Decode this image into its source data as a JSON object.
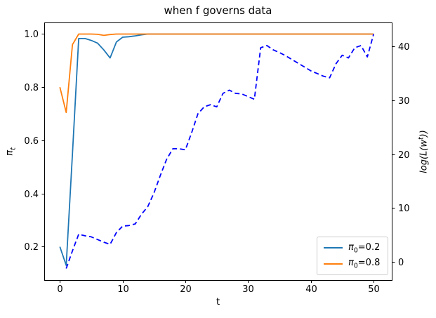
{
  "figure": {
    "title": "when f governs data",
    "xlabel": "t",
    "ylabel_left": {
      "symbol": "π",
      "subscript": "t"
    },
    "ylabel_right": {
      "prefix": "log(L(w",
      "superscript": "t",
      "suffix": "))"
    }
  },
  "legend": {
    "position": "lower right",
    "entries": [
      {
        "symbol": "π",
        "subscript": "0",
        "value": "=0.2",
        "color": "#1f77b4"
      },
      {
        "symbol": "π",
        "subscript": "0",
        "value": "=0.8",
        "color": "#ff7f0e"
      }
    ]
  },
  "chart_data": {
    "type": "line",
    "title": "when f governs data",
    "xlabel": "t",
    "ylabel_left": "π_t",
    "ylabel_right": "log(L(w^t))",
    "grid": false,
    "legend_position": "lower right",
    "xlim": [
      -2.5,
      52.9
    ],
    "ylim_left": [
      0.0745,
      1.0435
    ],
    "ylim_right": [
      -3.45,
      44.5
    ],
    "x_ticks": [
      0,
      10,
      20,
      30,
      40,
      50
    ],
    "x_tick_labels": [
      "0",
      "10",
      "20",
      "30",
      "40",
      "50"
    ],
    "y_ticks_left": [
      0.2,
      0.4,
      0.6,
      0.8,
      1.0
    ],
    "y_tick_labels_left": [
      "0.2",
      "0.4",
      "0.6",
      "0.8",
      "1.0"
    ],
    "y_ticks_right": [
      0,
      10,
      20,
      30,
      40
    ],
    "y_tick_labels_right": [
      "0",
      "10",
      "20",
      "30",
      "40"
    ],
    "series": [
      {
        "id": "pi0-02",
        "label": "π_0=0.2",
        "axis": "left",
        "style": "solid",
        "color": "#1f77b4",
        "x": [
          0,
          1,
          2,
          3,
          4,
          5,
          6,
          7,
          8,
          9,
          10,
          11,
          12,
          13,
          14,
          15,
          16,
          17,
          18,
          19,
          20,
          21,
          22,
          23,
          24,
          25,
          26,
          27,
          28,
          29,
          30,
          31,
          32,
          33,
          34,
          35,
          36,
          37,
          38,
          39,
          40,
          41,
          42,
          43,
          44,
          45,
          46,
          47,
          48,
          49,
          50
        ],
        "y": [
          0.2,
          0.13,
          0.55,
          0.983,
          0.983,
          0.976,
          0.966,
          0.94,
          0.91,
          0.97,
          0.988,
          0.99,
          0.993,
          0.997,
          1.0,
          1.0,
          1.0,
          1.0,
          1.0,
          1.0,
          1.0,
          1.0,
          1.0,
          1.0,
          1.0,
          1.0,
          1.0,
          1.0,
          1.0,
          1.0,
          1.0,
          1.0,
          1.0,
          1.0,
          1.0,
          1.0,
          1.0,
          1.0,
          1.0,
          1.0,
          1.0,
          1.0,
          1.0,
          1.0,
          1.0,
          1.0,
          1.0,
          1.0,
          1.0,
          1.0,
          1.0
        ]
      },
      {
        "id": "pi0-08",
        "label": "π_0=0.8",
        "axis": "left",
        "style": "solid",
        "color": "#ff7f0e",
        "x": [
          0,
          1,
          2,
          3,
          4,
          5,
          6,
          7,
          8,
          9,
          10,
          11,
          12,
          13,
          14,
          15,
          16,
          17,
          18,
          19,
          20,
          21,
          22,
          23,
          24,
          25,
          26,
          27,
          28,
          29,
          30,
          31,
          32,
          33,
          34,
          35,
          36,
          37,
          38,
          39,
          40,
          41,
          42,
          43,
          44,
          45,
          46,
          47,
          48,
          49,
          50
        ],
        "y": [
          0.8,
          0.705,
          0.96,
          1.0,
          1.0,
          1.0,
          0.999,
          0.995,
          0.998,
          1.0,
          1.0,
          1.0,
          1.0,
          1.0,
          1.0,
          1.0,
          1.0,
          1.0,
          1.0,
          1.0,
          1.0,
          1.0,
          1.0,
          1.0,
          1.0,
          1.0,
          1.0,
          1.0,
          1.0,
          1.0,
          1.0,
          1.0,
          1.0,
          1.0,
          1.0,
          1.0,
          1.0,
          1.0,
          1.0,
          1.0,
          1.0,
          1.0,
          1.0,
          1.0,
          1.0,
          1.0,
          1.0,
          1.0,
          1.0,
          1.0,
          1.0
        ]
      },
      {
        "id": "log-likelihood",
        "label": "log(L(w^t))",
        "axis": "right",
        "style": "dashed",
        "color": "#0000ff",
        "x": [
          1,
          2,
          3,
          4,
          5,
          6,
          7,
          8,
          9,
          10,
          11,
          12,
          13,
          14,
          15,
          16,
          17,
          18,
          19,
          20,
          21,
          22,
          23,
          24,
          25,
          26,
          27,
          28,
          29,
          30,
          31,
          32,
          33,
          34,
          35,
          36,
          37,
          38,
          39,
          40,
          41,
          42,
          43,
          44,
          45,
          46,
          47,
          48,
          49,
          50
        ],
        "y": [
          -1.3,
          2.0,
          5.1,
          4.8,
          4.6,
          4.1,
          3.6,
          3.2,
          5.4,
          6.6,
          6.7,
          7.0,
          8.8,
          10.2,
          12.8,
          16.0,
          19.0,
          21.0,
          21.0,
          20.8,
          24.0,
          27.5,
          28.8,
          29.2,
          28.8,
          31.3,
          31.9,
          31.3,
          31.2,
          30.7,
          30.2,
          39.8,
          40.2,
          39.4,
          38.9,
          38.3,
          37.6,
          36.9,
          36.2,
          35.5,
          35.0,
          34.5,
          34.2,
          36.8,
          38.4,
          37.9,
          39.8,
          40.2,
          38.1,
          42.3
        ]
      }
    ]
  }
}
